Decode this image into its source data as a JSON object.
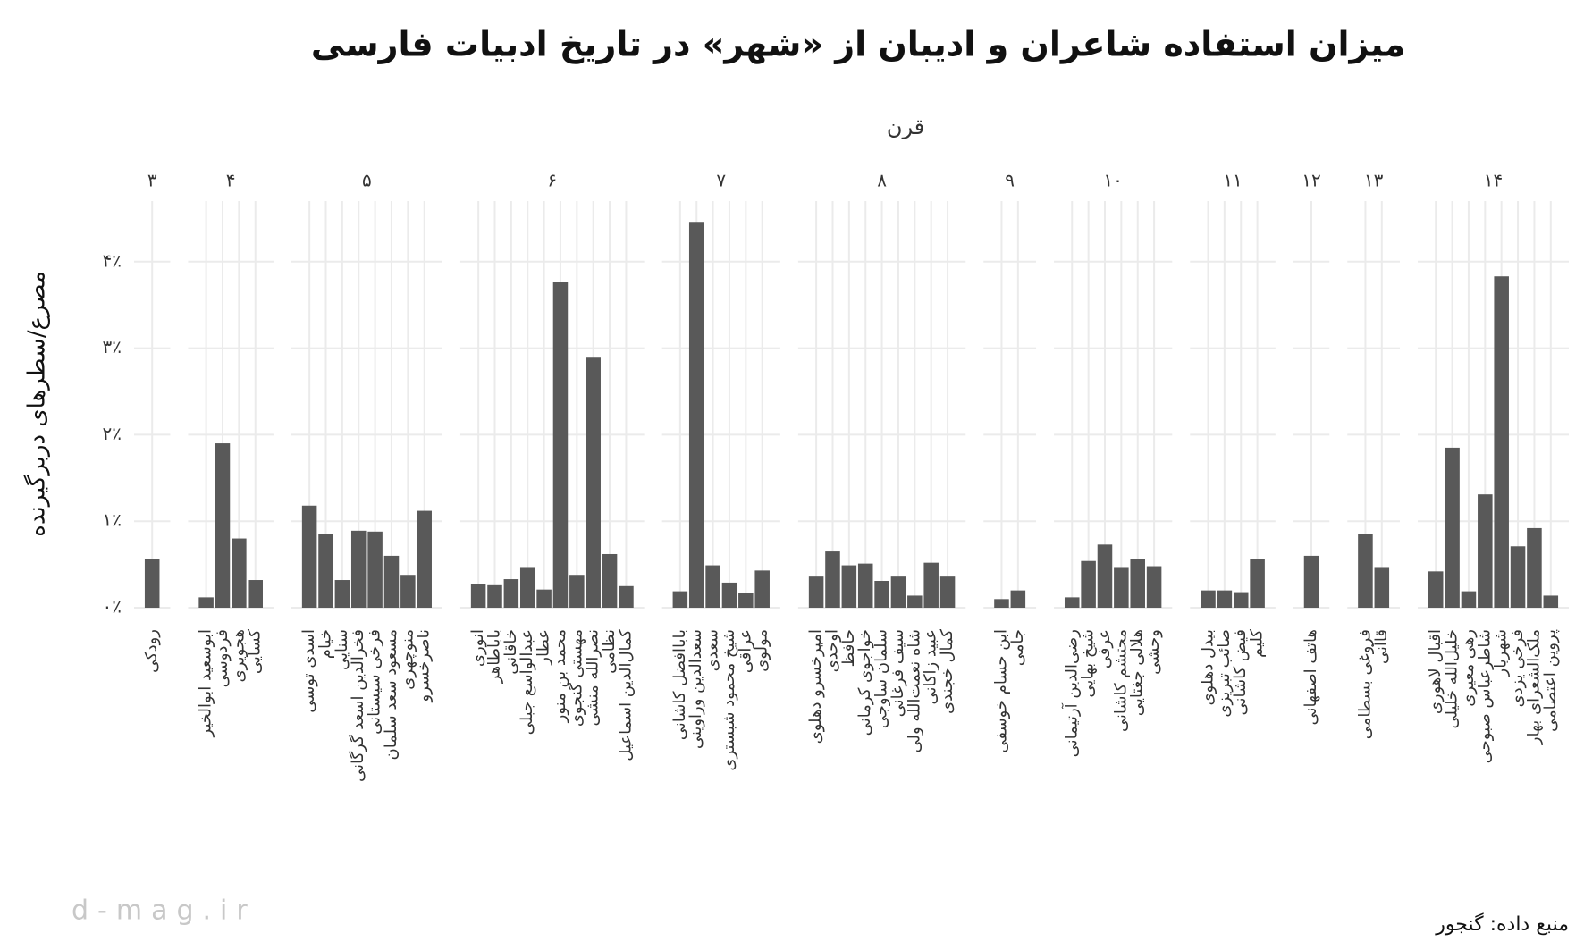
{
  "chart_data": {
    "type": "bar",
    "title": "میزان استفاده شاعران و ادیبان از «شهر» در تاریخ ادبیات فارسی",
    "facet_label": "قرن",
    "y_label": "مصرع/سطرهای دربرگیرنده",
    "source": "منبع داده: گنجور",
    "watermark": "d-mag.ir",
    "color": "#595959",
    "grid": true,
    "ylim": [
      0,
      4.7
    ],
    "yticks": [
      {
        "value": 0,
        "label": "۰٪"
      },
      {
        "value": 1,
        "label": "۱٪"
      },
      {
        "value": 2,
        "label": "۲٪"
      },
      {
        "value": 3,
        "label": "۳٪"
      },
      {
        "value": 4,
        "label": "۴٪"
      }
    ],
    "facets": [
      {
        "label": "۳",
        "categories": [
          "رودکی"
        ],
        "values": [
          0.56
        ]
      },
      {
        "label": "۴",
        "categories": [
          "ابوسعید ابوالخیر",
          "فردوسی",
          "هجویری",
          "کسایی"
        ],
        "values": [
          0.12,
          1.9,
          0.8,
          0.32
        ]
      },
      {
        "label": "۵",
        "categories": [
          "اسدی توسی",
          "خیام",
          "سنایی",
          "فخرالدین اسعد گرگانی",
          "فرخی سیستانی",
          "مسعود سعد سلمان",
          "منوچهری",
          "ناصرخسرو"
        ],
        "values": [
          1.18,
          0.85,
          0.32,
          0.89,
          0.88,
          0.6,
          0.38,
          1.12
        ]
      },
      {
        "label": "۶",
        "categories": [
          "انوری",
          "باباطاهر",
          "خاقانی",
          "عبدالواسع جبلی",
          "عطار",
          "محمد بن منور",
          "مهستی گنجوی",
          "نصرالله منشی",
          "نظامی",
          "کمال‌الدین اسماعیل"
        ],
        "values": [
          0.27,
          0.26,
          0.33,
          0.46,
          0.21,
          3.77,
          0.38,
          2.89,
          0.62,
          0.25
        ]
      },
      {
        "label": "۷",
        "categories": [
          "باباافضل کاشانی",
          "سعدالدین وراوینی",
          "سعدی",
          "شیخ محمود شبستری",
          "عراقی",
          "مولوی"
        ],
        "values": [
          0.19,
          4.46,
          0.49,
          0.29,
          0.17,
          0.43
        ]
      },
      {
        "label": "۸",
        "categories": [
          "امیرخسرو دهلوی",
          "اوحدی",
          "حافظ",
          "خواجوی کرمانی",
          "سلمان ساوجی",
          "سیف فرغانی",
          "شاه نعمت‌الله ولی",
          "عبید زاکانی",
          "کمال خجندی"
        ],
        "values": [
          0.36,
          0.65,
          0.49,
          0.51,
          0.31,
          0.36,
          0.14,
          0.52,
          0.36
        ]
      },
      {
        "label": "۹",
        "categories": [
          "ابن حسام خوسفی",
          "جامی"
        ],
        "values": [
          0.1,
          0.2
        ]
      },
      {
        "label": "۱۰",
        "categories": [
          "رضی‌الدین آرتیمانی",
          "شیخ بهایی",
          "عرفی",
          "محتشم کاشانی",
          "هلالی جغتایی",
          "وحشی"
        ],
        "values": [
          0.12,
          0.54,
          0.73,
          0.46,
          0.56,
          0.48
        ]
      },
      {
        "label": "۱۱",
        "categories": [
          "بیدل دهلوی",
          "صائب تبریزی",
          "فیض کاشانی",
          "کلیم"
        ],
        "values": [
          0.2,
          0.2,
          0.18,
          0.56
        ]
      },
      {
        "label": "۱۲",
        "categories": [
          "هاتف اصفهانی"
        ],
        "values": [
          0.6
        ]
      },
      {
        "label": "۱۳",
        "categories": [
          "فروغی بسطامی",
          "قاآنی"
        ],
        "values": [
          0.85,
          0.46
        ]
      },
      {
        "label": "۱۴",
        "categories": [
          "اقبال لاهوری",
          "خلیل‌الله خلیلی",
          "رهی معیری",
          "شاطرعباس صبوحی",
          "شهریار",
          "فرخی یزدی",
          "ملک‌الشعرای بهار",
          "پروین اعتصامی"
        ],
        "values": [
          0.42,
          1.85,
          0.19,
          1.31,
          3.83,
          0.71,
          0.92,
          0.14
        ]
      }
    ]
  }
}
